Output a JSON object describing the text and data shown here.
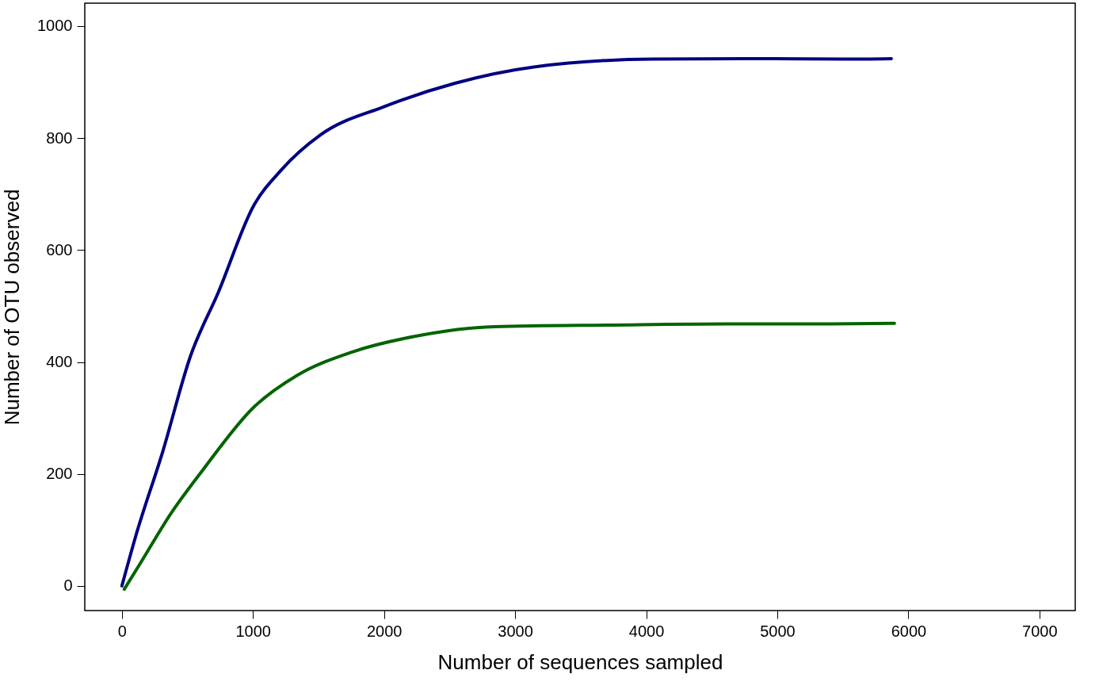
{
  "chart_data": {
    "type": "line",
    "xlabel": "Number of sequences sampled",
    "ylabel": "Number of OTU observed",
    "xlim": [
      -283,
      7273
    ],
    "ylim": [
      -44,
      1041
    ],
    "xticks": [
      0,
      1000,
      2000,
      3000,
      4000,
      5000,
      6000,
      7000
    ],
    "yticks": [
      0,
      200,
      400,
      600,
      800,
      1000
    ],
    "grid": false,
    "legend": false,
    "marker": "none",
    "line_style": "solid",
    "series": [
      {
        "color": "#000080",
        "x": [
          0,
          102,
          313,
          524,
          735,
          1005,
          1216,
          1517,
          1999,
          2541,
          3143,
          4046,
          4949,
          5500,
          5870
        ],
        "values": [
          0,
          86,
          241,
          411,
          524,
          679,
          743,
          806,
          856,
          898,
          927,
          941,
          942,
          941,
          942
        ]
      },
      {
        "color": "#006400",
        "x": [
          18,
          132,
          373,
          614,
          1005,
          1336,
          1758,
          2240,
          2842,
          3745,
          4600,
          5400,
          5894
        ],
        "values": [
          -6,
          37,
          129,
          206,
          319,
          376,
          418,
          446,
          463,
          466,
          468,
          468,
          469
        ]
      }
    ]
  }
}
